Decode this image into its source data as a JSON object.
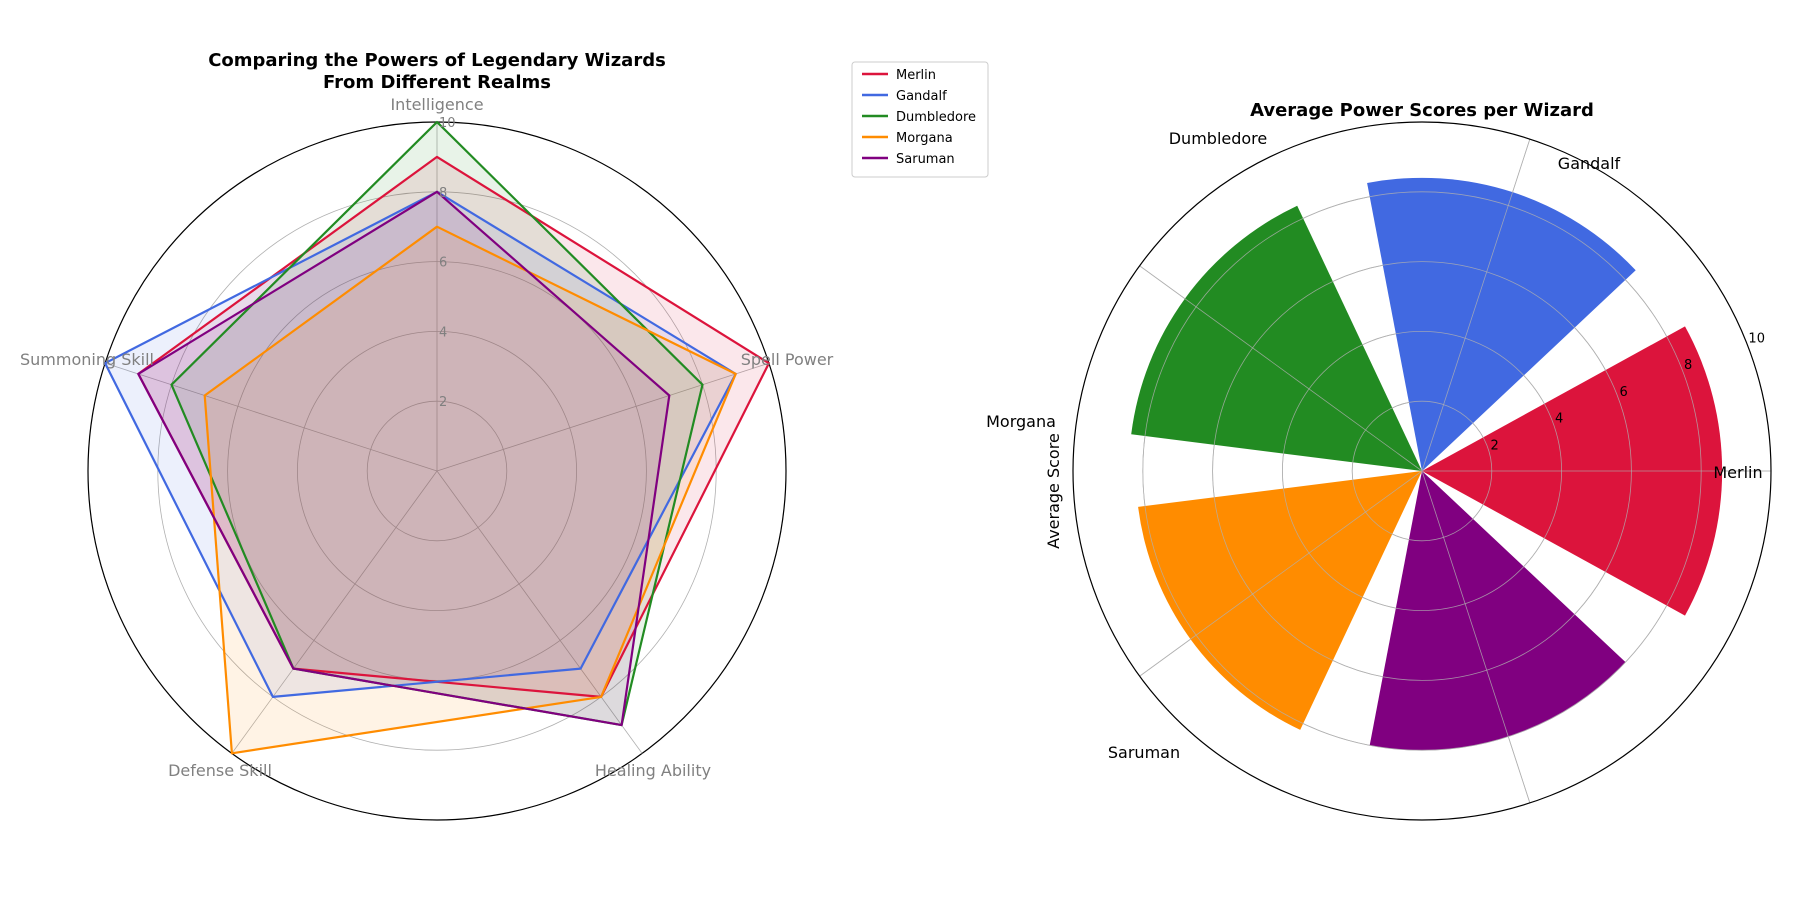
{
  "chart_data": [
    {
      "type": "radar",
      "title": "Comparing the Powers of Legendary Wizards\nFrom Different Realms",
      "categories": [
        "Intelligence",
        "Spell Power",
        "Healing Ability",
        "Defense Skill",
        "Summoning Skill"
      ],
      "rlim": [
        0,
        10
      ],
      "rticks": [
        2,
        4,
        6,
        8,
        10
      ],
      "grid": true,
      "legend": "upper-right-outside",
      "series": [
        {
          "name": "Merlin",
          "color": "#dc143c",
          "values": [
            9,
            10,
            8,
            7,
            9
          ]
        },
        {
          "name": "Gandalf",
          "color": "#4169e1",
          "values": [
            8,
            9,
            7,
            8,
            10
          ]
        },
        {
          "name": "Dumbledore",
          "color": "#228b22",
          "values": [
            10,
            8,
            9,
            7,
            8
          ]
        },
        {
          "name": "Morgana",
          "color": "#ff8c00",
          "values": [
            7,
            9,
            8,
            10,
            7
          ]
        },
        {
          "name": "Saruman",
          "color": "#800080",
          "values": [
            8,
            7,
            9,
            7,
            9
          ]
        }
      ]
    },
    {
      "type": "polar-bar",
      "title": "Average Power Scores per Wizard",
      "ylabel": "Average Score",
      "rlim": [
        0,
        10
      ],
      "rticks": [
        2,
        4,
        6,
        8,
        10
      ],
      "grid": true,
      "categories": [
        "Merlin",
        "Gandalf",
        "Dumbledore",
        "Morgana",
        "Saruman"
      ],
      "values": [
        8.6,
        8.4,
        8.4,
        8.2,
        8.0
      ],
      "colors": [
        "#dc143c",
        "#4169e1",
        "#228b22",
        "#ff8c00",
        "#800080"
      ]
    }
  ]
}
